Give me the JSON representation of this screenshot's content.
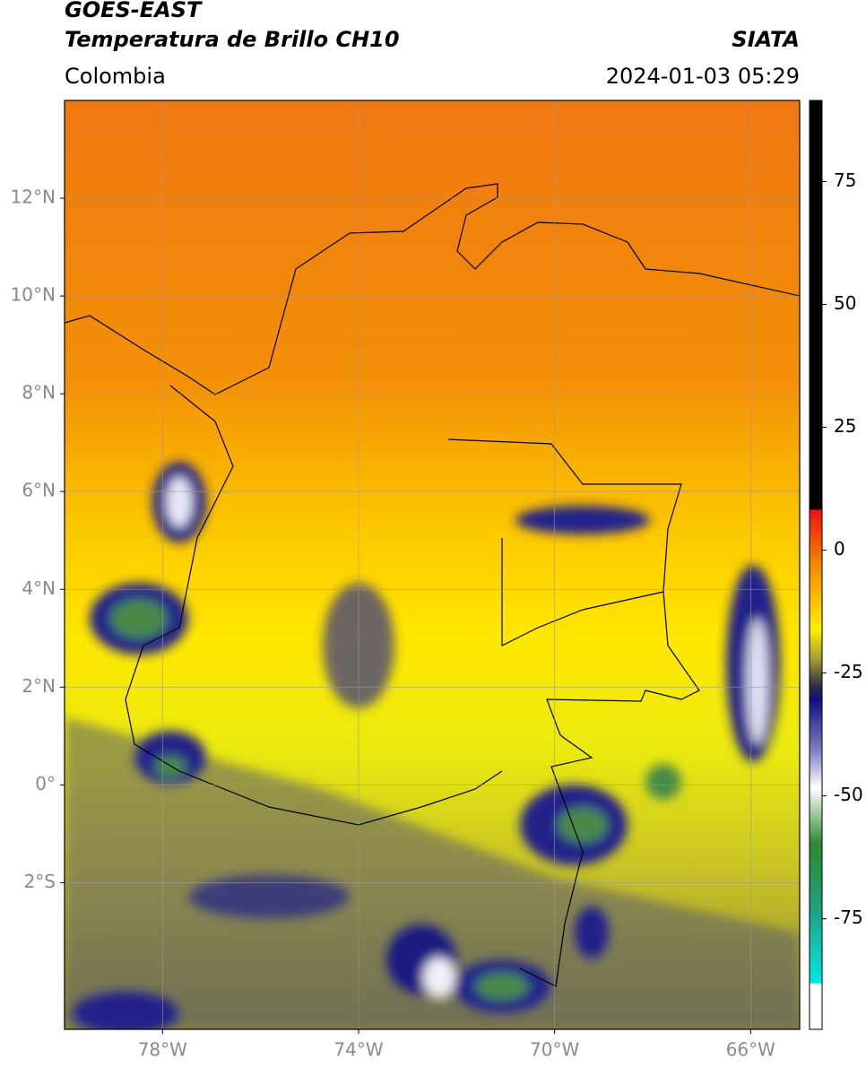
{
  "header": {
    "title": "GOES-EAST",
    "subtitle": "Temperatura de Brillo CH10",
    "source": "SIATA",
    "region": "Colombia",
    "datetime": "2024-01-03 05:29"
  },
  "map": {
    "xlim": [
      -80,
      -65
    ],
    "ylim": [
      -5,
      14
    ],
    "xticks": [
      {
        "value": -78,
        "label": "78°W"
      },
      {
        "value": -74,
        "label": "74°W"
      },
      {
        "value": -70,
        "label": "70°W"
      },
      {
        "value": -66,
        "label": "66°W"
      }
    ],
    "yticks": [
      {
        "value": 12,
        "label": "12°N"
      },
      {
        "value": 10,
        "label": "10°N"
      },
      {
        "value": 8,
        "label": "8°N"
      },
      {
        "value": 6,
        "label": "6°N"
      },
      {
        "value": 4,
        "label": "4°N"
      },
      {
        "value": 2,
        "label": "2°N"
      },
      {
        "value": 0,
        "label": "0°"
      },
      {
        "value": -2,
        "label": "2°S"
      }
    ],
    "grid": true
  },
  "colorbar": {
    "lim": [
      -97.5,
      91.5
    ],
    "ticks": [
      75,
      50,
      25,
      0,
      -25,
      -50,
      -75
    ]
  }
}
